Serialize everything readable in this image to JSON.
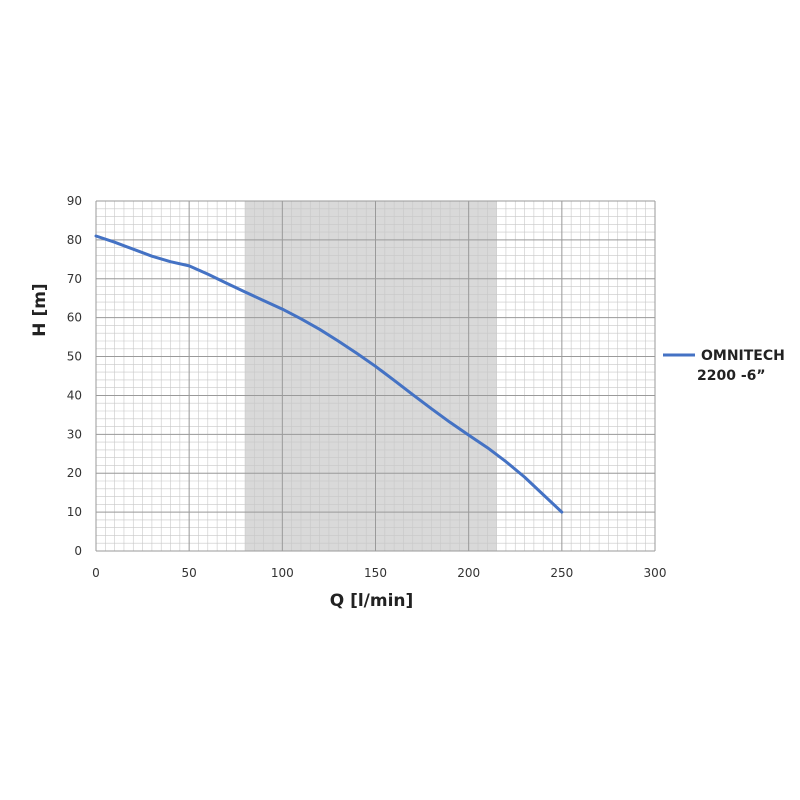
{
  "chart_data": {
    "type": "line",
    "xlabel": "Q [l/min]",
    "ylabel": "H [m]",
    "xlim": [
      0,
      300
    ],
    "ylim": [
      0,
      90
    ],
    "x_ticks": [
      0,
      50,
      100,
      150,
      200,
      250,
      300
    ],
    "y_ticks": [
      0,
      10,
      20,
      30,
      40,
      50,
      60,
      70,
      80,
      90
    ],
    "grid": true,
    "highlight_range_x": [
      80,
      215
    ],
    "legend_position": "right",
    "series": [
      {
        "name": "OMNITECH 2200 -6”",
        "name_lines": [
          "OMNITECH",
          "2200 -6”"
        ],
        "color": "#4472C4",
        "x": [
          0,
          10,
          20,
          30,
          40,
          50,
          60,
          70,
          80,
          90,
          100,
          110,
          120,
          130,
          140,
          150,
          160,
          170,
          180,
          190,
          200,
          210,
          220,
          230,
          240,
          250
        ],
        "y": [
          81,
          79.4,
          77.6,
          75.8,
          74.4,
          73.3,
          71.2,
          68.9,
          66.6,
          64.4,
          62.2,
          59.7,
          57,
          54,
          50.8,
          47.5,
          43.9,
          40.2,
          36.6,
          33.1,
          29.8,
          26.6,
          23,
          19,
          14.5,
          10
        ]
      }
    ]
  }
}
